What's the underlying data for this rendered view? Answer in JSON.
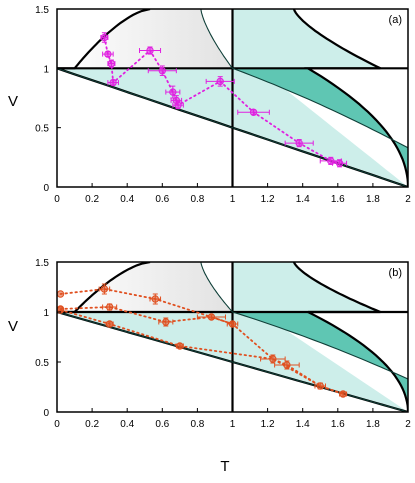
{
  "chart_data": [
    {
      "type": "scatter",
      "panel_label": "(a)",
      "ylabel": "V",
      "xlim": [
        0,
        2
      ],
      "ylim": [
        0,
        1.5
      ],
      "xticks": [
        "0",
        "0.2",
        "0.4",
        "0.6",
        "0.8",
        "1",
        "1.2",
        "1.4",
        "1.6",
        "1.8",
        "2"
      ],
      "yticks": [
        "0",
        "0.5",
        "1",
        "1.5"
      ],
      "marker_color": "#e020e0",
      "series": [
        {
          "points": [
            {
              "x": 0.27,
              "y": 1.26,
              "xerr": 0.02,
              "yerr": 0.04
            },
            {
              "x": 0.29,
              "y": 1.12,
              "xerr": 0.03,
              "yerr": 0.02
            },
            {
              "x": 0.31,
              "y": 1.04,
              "xerr": 0.02,
              "yerr": 0.03
            },
            {
              "x": 0.32,
              "y": 0.88,
              "xerr": 0.03,
              "yerr": 0.02
            },
            {
              "x": 0.53,
              "y": 1.15,
              "xerr": 0.06,
              "yerr": 0.03
            },
            {
              "x": 0.6,
              "y": 0.98,
              "xerr": 0.08,
              "yerr": 0.04
            },
            {
              "x": 0.66,
              "y": 0.8,
              "xerr": 0.04,
              "yerr": 0.05
            },
            {
              "x": 0.68,
              "y": 0.73,
              "xerr": 0.03,
              "yerr": 0.04
            },
            {
              "x": 0.69,
              "y": 0.69,
              "xerr": 0.03,
              "yerr": 0.03
            },
            {
              "x": 0.93,
              "y": 0.89,
              "xerr": 0.08,
              "yerr": 0.04
            },
            {
              "x": 1.12,
              "y": 0.63,
              "xerr": 0.09,
              "yerr": 0.02
            },
            {
              "x": 1.38,
              "y": 0.37,
              "xerr": 0.08,
              "yerr": 0.03
            },
            {
              "x": 1.56,
              "y": 0.22,
              "xerr": 0.06,
              "yerr": 0.03
            },
            {
              "x": 1.61,
              "y": 0.2,
              "xerr": 0.04,
              "yerr": 0.03
            }
          ],
          "trend": [
            [
              0.27,
              1.26
            ],
            [
              0.29,
              1.12
            ],
            [
              0.31,
              1.04
            ],
            [
              0.32,
              0.88
            ],
            [
              0.53,
              1.15
            ],
            [
              0.6,
              0.98
            ],
            [
              0.66,
              0.8
            ],
            [
              0.69,
              0.69
            ],
            [
              0.93,
              0.89
            ],
            [
              1.12,
              0.63
            ],
            [
              1.38,
              0.37
            ],
            [
              1.56,
              0.22
            ],
            [
              1.61,
              0.2
            ]
          ]
        }
      ]
    },
    {
      "type": "scatter",
      "panel_label": "(b)",
      "ylabel": "V",
      "xlabel": "T",
      "xlim": [
        0,
        2
      ],
      "ylim": [
        0,
        1.5
      ],
      "xticks": [
        "0",
        "0.2",
        "0.4",
        "0.6",
        "0.8",
        "1",
        "1.2",
        "1.4",
        "1.6",
        "1.8",
        "2"
      ],
      "yticks": [
        "0",
        "0.5",
        "1",
        "1.5"
      ],
      "marker_color": "#e05020",
      "series": [
        {
          "points": [
            {
              "x": 0.02,
              "y": 1.18,
              "xerr": 0,
              "yerr": 0
            },
            {
              "x": 0.27,
              "y": 1.23,
              "xerr": 0.03,
              "yerr": 0.05
            },
            {
              "x": 0.56,
              "y": 1.13,
              "xerr": 0.03,
              "yerr": 0.05
            }
          ],
          "trend": [
            [
              0.02,
              1.18
            ],
            [
              0.27,
              1.23
            ],
            [
              0.56,
              1.13
            ],
            [
              0.88,
              0.95
            ],
            [
              1.0,
              0.88
            ]
          ]
        },
        {
          "points": [
            {
              "x": 0.02,
              "y": 1.03,
              "xerr": 0,
              "yerr": 0
            },
            {
              "x": 0.3,
              "y": 1.05,
              "xerr": 0.04,
              "yerr": 0.03
            },
            {
              "x": 0.62,
              "y": 0.9,
              "xerr": 0.04,
              "yerr": 0.04
            },
            {
              "x": 0.88,
              "y": 0.95,
              "xerr": 0.08,
              "yerr": 0.02
            },
            {
              "x": 1.0,
              "y": 0.88,
              "xerr": 0.03,
              "yerr": 0.02
            }
          ],
          "trend": [
            [
              0.02,
              1.03
            ],
            [
              0.3,
              1.05
            ],
            [
              0.62,
              0.9
            ],
            [
              0.88,
              0.95
            ],
            [
              1.0,
              0.88
            ],
            [
              1.23,
              0.53
            ],
            [
              1.31,
              0.47
            ],
            [
              1.5,
              0.26
            ],
            [
              1.63,
              0.18
            ]
          ]
        },
        {
          "points": [
            {
              "x": 0.02,
              "y": 1.02,
              "xerr": 0,
              "yerr": 0
            },
            {
              "x": 0.3,
              "y": 0.88,
              "xerr": 0.02,
              "yerr": 0.02
            },
            {
              "x": 0.7,
              "y": 0.66,
              "xerr": 0.02,
              "yerr": 0.02
            },
            {
              "x": 1.23,
              "y": 0.53,
              "xerr": 0.07,
              "yerr": 0.04
            },
            {
              "x": 1.31,
              "y": 0.47,
              "xerr": 0.07,
              "yerr": 0.04
            },
            {
              "x": 1.5,
              "y": 0.26,
              "xerr": 0.03,
              "yerr": 0.03
            },
            {
              "x": 1.63,
              "y": 0.18,
              "xerr": 0.02,
              "yerr": 0.02
            }
          ],
          "trend": [
            [
              0.02,
              1.02
            ],
            [
              0.3,
              0.88
            ],
            [
              0.7,
              0.66
            ],
            [
              1.23,
              0.53
            ],
            [
              1.5,
              0.26
            ],
            [
              1.63,
              0.18
            ]
          ]
        }
      ]
    }
  ]
}
